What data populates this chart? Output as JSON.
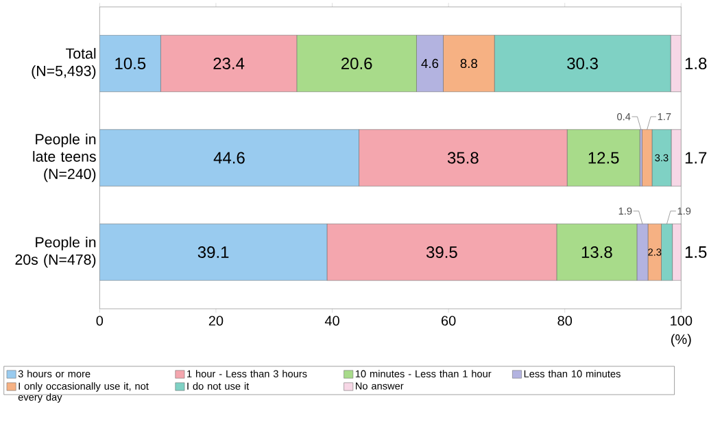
{
  "chart_data": {
    "type": "bar",
    "orientation": "horizontal",
    "stacked": true,
    "categories": [
      "Total (N=5,493)",
      "People in late teens (N=240)",
      "People in 20s (N=478)"
    ],
    "series": [
      {
        "name": "3 hours or more",
        "color": "#99cbef",
        "values": [
          10.5,
          44.6,
          39.1
        ]
      },
      {
        "name": "1 hour - Less than 3 hours",
        "color": "#f4a6ae",
        "values": [
          23.4,
          35.8,
          39.5
        ]
      },
      {
        "name": "10 minutes - Less than 1 hour",
        "color": "#a8db8a",
        "values": [
          20.6,
          12.5,
          13.8
        ]
      },
      {
        "name": "Less than 10 minutes",
        "color": "#b3b3e0",
        "values": [
          4.6,
          0.4,
          1.9
        ]
      },
      {
        "name": "I only occasionally use it, not every day",
        "color": "#f6b183",
        "values": [
          8.8,
          1.7,
          2.3
        ]
      },
      {
        "name": "I do not use it",
        "color": "#7fd1c4",
        "values": [
          30.3,
          3.3,
          1.9
        ]
      },
      {
        "name": "No answer",
        "color": "#f7d7e6",
        "values": [
          1.8,
          1.7,
          1.5
        ]
      }
    ],
    "xlim": [
      0,
      100
    ],
    "xticks": [
      0,
      20,
      40,
      60,
      80,
      100
    ],
    "xlabel": "(%)",
    "data_labels": true,
    "legend": "bottom",
    "grid": false
  }
}
